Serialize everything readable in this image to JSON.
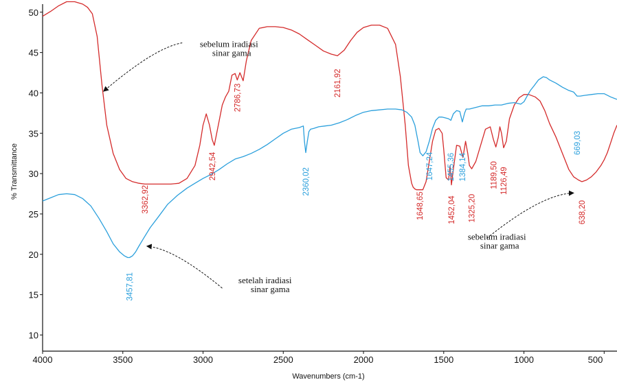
{
  "chart_data": {
    "type": "line",
    "title": "",
    "xlabel": "Wavenumbers (cm-1)",
    "ylabel": "% Transmittance",
    "xlim": [
      4000,
      420
    ],
    "ylim": [
      8,
      51
    ],
    "x_reversed": true,
    "grid": false,
    "x_ticks": [
      "4000",
      "3500",
      "3000",
      "2500",
      "2000",
      "1500",
      "1000",
      "500"
    ],
    "y_ticks": [
      "10",
      "15",
      "20",
      "25",
      "30",
      "35",
      "40",
      "45",
      "50"
    ],
    "colors": {
      "before": "#d42a2a",
      "after": "#2a9fdc"
    },
    "series": [
      {
        "key": "before",
        "x": [
          4000,
          3950,
          3900,
          3850,
          3800,
          3750,
          3720,
          3690,
          3660,
          3630,
          3600,
          3560,
          3520,
          3480,
          3440,
          3400,
          3362.92,
          3300,
          3250,
          3200,
          3150,
          3100,
          3050,
          3020,
          3000,
          2980,
          2960,
          2942.54,
          2930,
          2915,
          2900,
          2880,
          2860,
          2840,
          2820,
          2800,
          2786.73,
          2770,
          2750,
          2730,
          2700,
          2650,
          2600,
          2550,
          2500,
          2450,
          2400,
          2350,
          2300,
          2250,
          2200,
          2161.92,
          2120,
          2080,
          2040,
          2000,
          1950,
          1900,
          1850,
          1800,
          1770,
          1740,
          1720,
          1700,
          1690,
          1680,
          1670,
          1660,
          1648.65,
          1630,
          1610,
          1590,
          1570,
          1550,
          1530,
          1510,
          1500,
          1485,
          1470,
          1460,
          1452.04,
          1440,
          1420,
          1400,
          1380,
          1364,
          1350,
          1340,
          1325.2,
          1300,
          1270,
          1240,
          1210,
          1190,
          1175,
          1160,
          1150,
          1140,
          1126.49,
          1110,
          1090,
          1060,
          1030,
          1000,
          970,
          930,
          900,
          870,
          840,
          800,
          760,
          720,
          690,
          660,
          638.2,
          610,
          580,
          550,
          520,
          500,
          480,
          460,
          440,
          420
        ],
        "y": [
          49.5,
          50.1,
          50.8,
          51.3,
          51.3,
          51.0,
          50.6,
          49.8,
          47.0,
          41.0,
          36.0,
          32.5,
          30.5,
          29.4,
          29.0,
          28.8,
          28.7,
          28.7,
          28.7,
          28.7,
          28.8,
          29.4,
          31.0,
          33.5,
          36.0,
          37.4,
          36.0,
          34.2,
          33.5,
          35.0,
          36.5,
          38.5,
          39.5,
          40.2,
          42.2,
          42.4,
          41.6,
          42.5,
          41.5,
          44.0,
          46.5,
          48.0,
          48.2,
          48.2,
          48.1,
          47.8,
          47.3,
          46.6,
          45.9,
          45.2,
          44.8,
          44.6,
          45.3,
          46.5,
          47.5,
          48.1,
          48.4,
          48.4,
          48.0,
          46.0,
          42.0,
          36.0,
          31.0,
          28.8,
          28.3,
          28.1,
          28.0,
          28.0,
          28.0,
          28.0,
          29.0,
          31.5,
          34.0,
          35.4,
          35.6,
          35.0,
          33.0,
          29.5,
          29.2,
          31.0,
          28.6,
          30.5,
          33.5,
          33.4,
          32.0,
          34.0,
          32.5,
          31.0,
          30.6,
          31.5,
          33.5,
          35.5,
          35.8,
          34.2,
          33.3,
          34.5,
          35.8,
          35.0,
          33.2,
          34.0,
          36.8,
          38.5,
          39.4,
          39.8,
          39.8,
          39.5,
          39.0,
          37.8,
          36.2,
          34.5,
          32.5,
          30.5,
          29.6,
          29.2,
          29.0,
          29.2,
          29.6,
          30.2,
          31.0,
          31.7,
          32.6,
          33.8,
          35.0,
          36.0
        ]
      },
      {
        "key": "after",
        "x": [
          4000,
          3950,
          3900,
          3850,
          3800,
          3750,
          3700,
          3650,
          3600,
          3560,
          3520,
          3490,
          3470,
          3457.81,
          3440,
          3420,
          3400,
          3370,
          3330,
          3280,
          3220,
          3160,
          3100,
          3050,
          3000,
          2950,
          2900,
          2850,
          2800,
          2750,
          2700,
          2650,
          2600,
          2550,
          2500,
          2450,
          2400,
          2375,
          2368,
          2360.02,
          2350,
          2340,
          2330,
          2310,
          2280,
          2240,
          2200,
          2150,
          2100,
          2050,
          2000,
          1950,
          1900,
          1850,
          1800,
          1760,
          1730,
          1700,
          1680,
          1660,
          1647.24,
          1630,
          1610,
          1590,
          1570,
          1550,
          1530,
          1510,
          1490,
          1470,
          1455.36,
          1440,
          1420,
          1400,
          1384.14,
          1370,
          1360,
          1340,
          1300,
          1260,
          1220,
          1180,
          1140,
          1100,
          1060,
          1020,
          1000,
          980,
          960,
          940,
          910,
          880,
          860,
          840,
          800,
          760,
          720,
          690,
          669.03,
          650,
          620,
          580,
          540,
          500,
          460,
          420
        ],
        "y": [
          26.6,
          27.0,
          27.4,
          27.5,
          27.4,
          26.9,
          26.0,
          24.5,
          22.8,
          21.3,
          20.3,
          19.8,
          19.6,
          19.6,
          19.8,
          20.3,
          21.0,
          22.0,
          23.3,
          24.6,
          26.2,
          27.3,
          28.2,
          28.8,
          29.4,
          29.9,
          30.5,
          31.2,
          31.8,
          32.1,
          32.5,
          33.0,
          33.6,
          34.3,
          35.0,
          35.5,
          35.7,
          35.9,
          34.0,
          32.6,
          34.0,
          35.2,
          35.5,
          35.6,
          35.8,
          35.9,
          36.0,
          36.3,
          36.7,
          37.2,
          37.6,
          37.8,
          37.9,
          38.0,
          38.0,
          37.9,
          37.6,
          37.0,
          36.0,
          34.0,
          32.6,
          32.2,
          32.7,
          34.0,
          35.6,
          36.6,
          37.0,
          37.0,
          36.9,
          36.8,
          36.6,
          37.4,
          37.8,
          37.7,
          36.4,
          37.5,
          38.0,
          38.0,
          38.2,
          38.4,
          38.4,
          38.5,
          38.5,
          38.7,
          38.8,
          38.6,
          38.9,
          39.6,
          40.3,
          40.8,
          41.6,
          42.0,
          41.9,
          41.6,
          41.2,
          40.7,
          40.3,
          40.1,
          39.6,
          39.6,
          39.7,
          39.8,
          39.9,
          39.9,
          39.5,
          39.2
        ]
      }
    ],
    "peak_labels": [
      {
        "key": "before",
        "text": "3362,92",
        "x": 3362.92,
        "y": 26.8
      },
      {
        "key": "before",
        "text": "2942,54",
        "x": 2942.54,
        "y": 30.9
      },
      {
        "key": "before",
        "text": "2786,73",
        "x": 2786.73,
        "y": 39.4
      },
      {
        "key": "before",
        "text": "2161,92",
        "x": 2161.92,
        "y": 41.2
      },
      {
        "key": "before",
        "text": "1648,65",
        "x": 1648.65,
        "y": 26.0
      },
      {
        "key": "after",
        "text": "1647,24",
        "x": 1590,
        "y": 30.9
      },
      {
        "key": "before",
        "text": "1452,04",
        "x": 1452.04,
        "y": 25.5
      },
      {
        "key": "after",
        "text": "1455,36",
        "x": 1455.36,
        "y": 30.8
      },
      {
        "key": "after",
        "text": "1384,14",
        "x": 1384.14,
        "y": 30.8
      },
      {
        "key": "before",
        "text": "1325,20",
        "x": 1325.2,
        "y": 25.7
      },
      {
        "key": "before",
        "text": "1189,50",
        "x": 1189.5,
        "y": 29.8
      },
      {
        "key": "before",
        "text": "1126,49",
        "x": 1126.49,
        "y": 29.1
      },
      {
        "key": "after",
        "text": "669,03",
        "x": 669.03,
        "y": 33.8
      },
      {
        "key": "before",
        "text": "638,20",
        "x": 638.2,
        "y": 25.2
      },
      {
        "key": "after",
        "text": "3457,81",
        "x": 3457.81,
        "y": 16.0
      },
      {
        "key": "after",
        "text": "2360,02",
        "x": 2360.02,
        "y": 29.0
      }
    ],
    "annotations": [
      {
        "lines": [
          "sebelum iradiasi",
          "sinar gama"
        ],
        "text_at": [
          3020,
          45.7
        ],
        "arrow_from": [
          3130,
          46.2
        ],
        "arrow_to": [
          3620,
          40.2
        ]
      },
      {
        "lines": [
          "sebelum iradiasi",
          "sinar gama"
        ],
        "text_at": [
          1350,
          21.8
        ],
        "arrow_from": [
          1230,
          22.0
        ],
        "arrow_to": [
          690,
          27.6
        ]
      },
      {
        "lines": [
          "setelah iradiasi",
          "sinar gama"
        ],
        "text_at": [
          2780,
          16.4
        ],
        "arrow_from": [
          2880,
          15.8
        ],
        "arrow_to": [
          3350,
          21.0
        ]
      }
    ]
  }
}
